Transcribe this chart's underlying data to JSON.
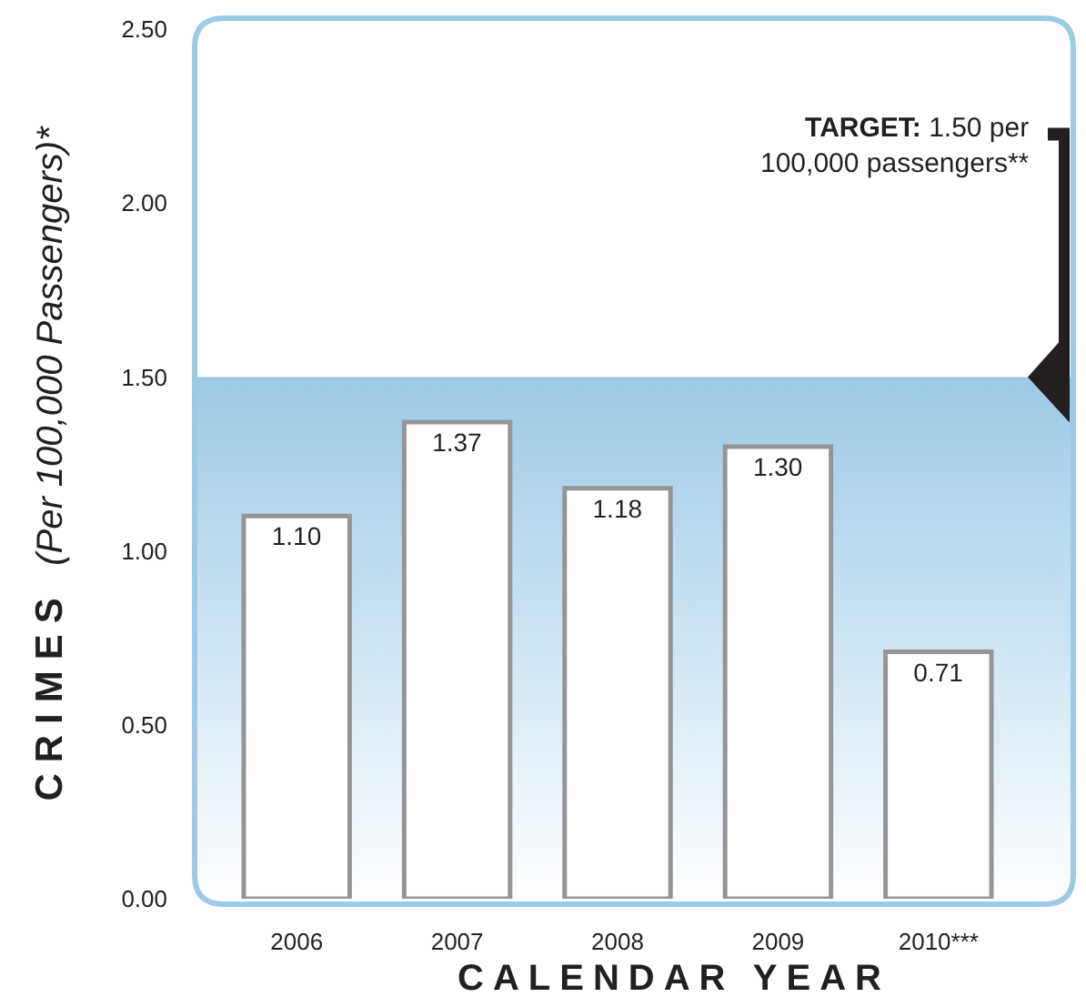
{
  "chart_data": {
    "type": "bar",
    "xlabel": "CALENDAR YEAR",
    "ylabel": "CRIMES (Per 100,000 Passengers)*",
    "categories": [
      "2006",
      "2007",
      "2008",
      "2009",
      "2010***"
    ],
    "values": [
      1.1,
      1.37,
      1.18,
      1.3,
      0.71
    ],
    "color": "#ffffff",
    "value_labels": [
      "1.10",
      "1.37",
      "1.18",
      "1.30",
      "0.71"
    ],
    "ylim": [
      0,
      2.5
    ],
    "yticks": [
      {
        "value": 0,
        "label": "0.00"
      },
      {
        "value": 0.5,
        "label": "0.50"
      },
      {
        "value": 1,
        "label": "1.00"
      },
      {
        "value": 1.5,
        "label": "1.50"
      },
      {
        "value": 2,
        "label": "2.00"
      },
      {
        "value": 2.5,
        "label": "2.50"
      }
    ],
    "bands": [
      {
        "axis": "y",
        "from": 0,
        "to": 1.5,
        "color": "#9ccae6"
      }
    ],
    "annotations": [
      "TARGET: 1.50 per\n100,000 passengers**"
    ],
    "grid": false
  }
}
